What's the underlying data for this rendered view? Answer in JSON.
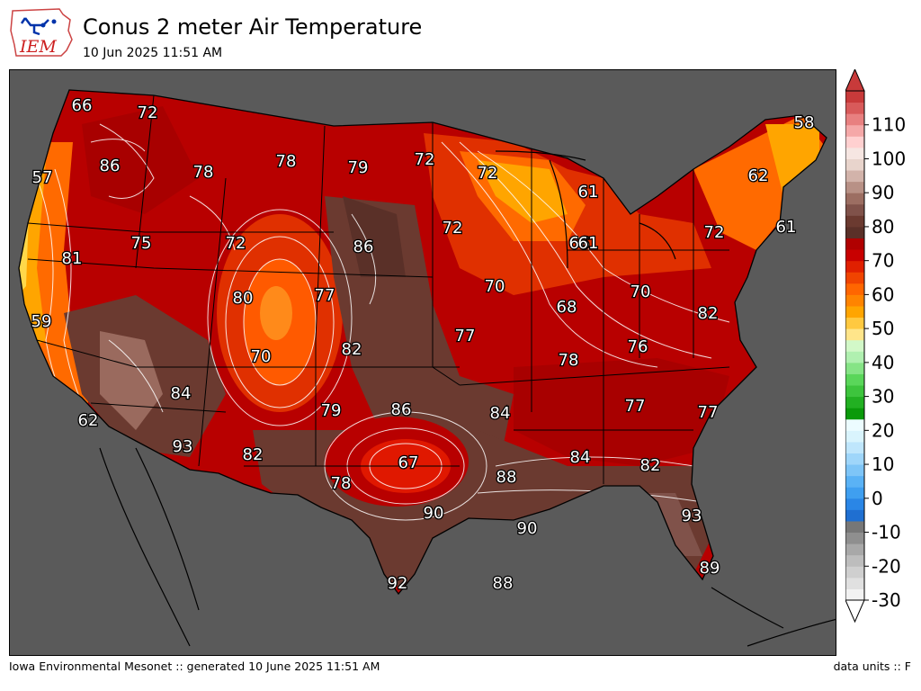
{
  "header": {
    "title": "Conus 2 meter Air Temperature",
    "subtitle": "10 Jun 2025 11:51 AM",
    "logo_text": "IEM"
  },
  "footer": {
    "left": "Iowa Environmental Mesonet :: generated 10 June 2025 11:51 AM",
    "right": "data units :: F"
  },
  "colors": {
    "background": "#5a5a5a",
    "land_hot": "#6b3a30",
    "land_warm": "#b80000",
    "land_mild": "#e03000",
    "land_cool": "#ffa500",
    "contour": "#ffffff",
    "boundary": "#000000"
  },
  "colorbar": {
    "tick_labels": [
      "-30",
      "-20",
      "-10",
      "0",
      "10",
      "20",
      "30",
      "40",
      "50",
      "60",
      "70",
      "80",
      "90",
      "100",
      "110"
    ],
    "range": [
      -30,
      120
    ]
  },
  "station_labels": [
    "66",
    "72",
    "86",
    "57",
    "78",
    "78",
    "79",
    "72",
    "58",
    "62",
    "61",
    "61",
    "72",
    "86",
    "75",
    "72",
    "81",
    "72",
    "66",
    "72",
    "61",
    "80",
    "77",
    "70",
    "70",
    "59",
    "68",
    "82",
    "82",
    "77",
    "70",
    "76",
    "78",
    "84",
    "79",
    "86",
    "84",
    "77",
    "77",
    "62",
    "93",
    "82",
    "67",
    "88",
    "84",
    "82",
    "78",
    "90",
    "90",
    "93",
    "92",
    "88",
    "89"
  ]
}
